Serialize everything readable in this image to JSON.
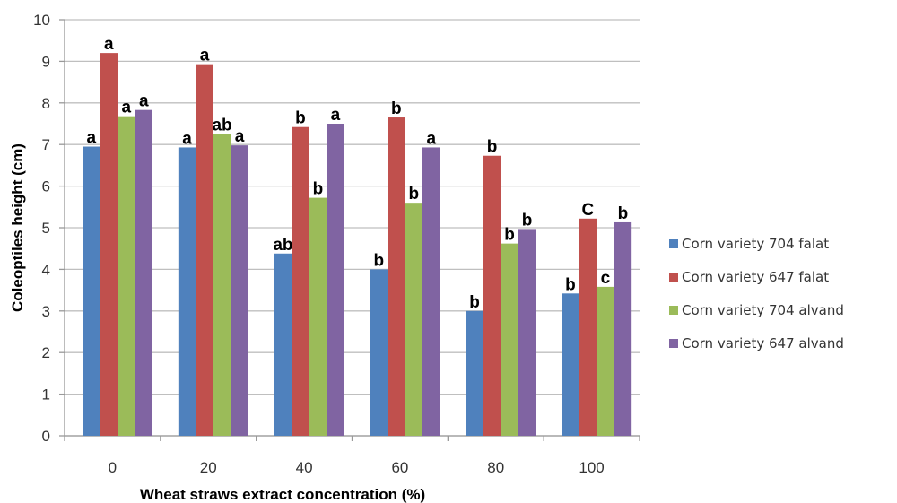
{
  "chart_data": {
    "type": "bar",
    "title": "",
    "xlabel": "Wheat straws extract concentration (%)",
    "ylabel": "Coleoptiles height (cm)",
    "ylim": [
      0,
      10
    ],
    "yticks": [
      0,
      1,
      2,
      3,
      4,
      5,
      6,
      7,
      8,
      9,
      10
    ],
    "grid": true,
    "legend_position": "right",
    "categories": [
      "0",
      "20",
      "40",
      "60",
      "80",
      "100"
    ],
    "series": [
      {
        "name": "Corn variety 704 falat",
        "color": "#4F81BD",
        "values": [
          6.95,
          6.93,
          4.38,
          4.0,
          3.0,
          3.42
        ],
        "labels": [
          "a",
          "a",
          "ab",
          "b",
          "b",
          "b"
        ]
      },
      {
        "name": "Corn variety 647 falat",
        "color": "#C0504D",
        "values": [
          9.2,
          8.93,
          7.42,
          7.65,
          6.73,
          5.22
        ],
        "labels": [
          "a",
          "a",
          "b",
          "b",
          "b",
          "C"
        ]
      },
      {
        "name": "Corn variety 704 alvand",
        "color": "#9BBB59",
        "values": [
          7.68,
          7.25,
          5.72,
          5.6,
          4.62,
          3.58
        ],
        "labels": [
          "a",
          "ab",
          "b",
          "b",
          "b",
          "c"
        ]
      },
      {
        "name": "Corn variety 647 alvand",
        "color": "#8064A2",
        "values": [
          7.83,
          6.98,
          7.5,
          6.93,
          4.97,
          5.13
        ],
        "labels": [
          "a",
          "a",
          "a",
          "a",
          "b",
          "b"
        ]
      }
    ]
  }
}
